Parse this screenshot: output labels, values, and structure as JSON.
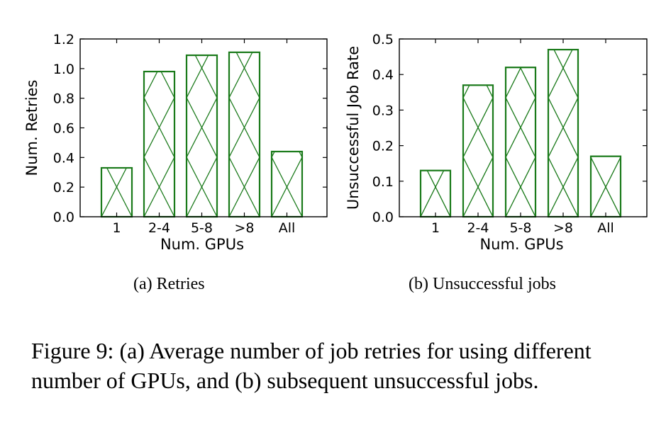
{
  "chart_data": [
    {
      "type": "bar",
      "categories": [
        "1",
        "2-4",
        "5-8",
        ">8",
        "All"
      ],
      "values": [
        0.33,
        0.98,
        1.09,
        1.11,
        0.44
      ],
      "title": "",
      "xlabel": "Num. GPUs",
      "ylabel": "Num. Retries",
      "ylim": [
        0,
        1.2
      ],
      "yticks": [
        "0.0",
        "0.2",
        "0.4",
        "0.6",
        "0.8",
        "1.0",
        "1.2"
      ],
      "bar_color": "#1a7a1a",
      "hatch": "x",
      "grid": false
    },
    {
      "type": "bar",
      "categories": [
        "1",
        "2-4",
        "5-8",
        ">8",
        "All"
      ],
      "values": [
        0.13,
        0.37,
        0.42,
        0.47,
        0.17
      ],
      "title": "",
      "xlabel": "Num. GPUs",
      "ylabel": "Unsuccessful Job Rate",
      "ylim": [
        0,
        0.5
      ],
      "yticks": [
        "0.0",
        "0.1",
        "0.2",
        "0.3",
        "0.4",
        "0.5"
      ],
      "bar_color": "#1a7a1a",
      "hatch": "x",
      "grid": false
    }
  ],
  "subcaptions": [
    "(a)  Retries",
    "(b)  Unsuccessful jobs"
  ],
  "caption": "Figure 9:  (a) Average number of job retries for using different number of GPUs, and (b) subsequent unsuccessful jobs."
}
